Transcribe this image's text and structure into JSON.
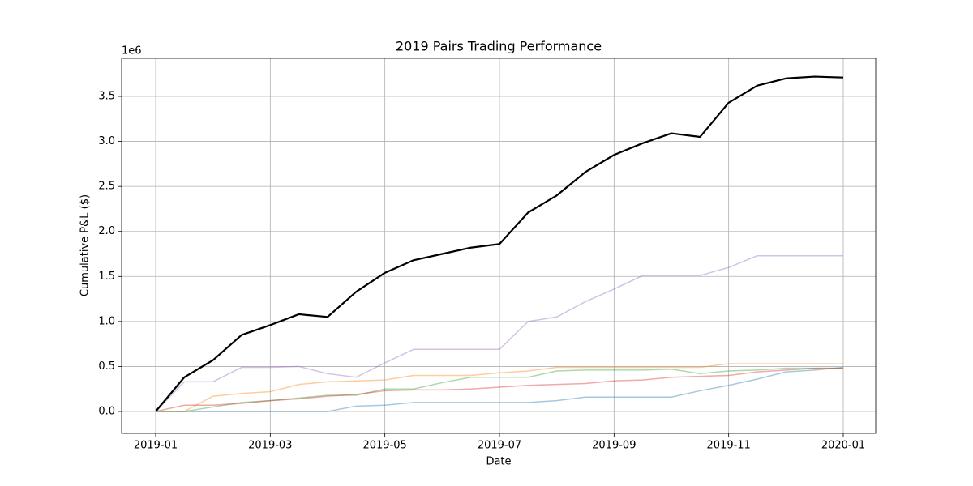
{
  "chart_data": {
    "type": "line",
    "title": "2019 Pairs Trading Performance",
    "x_label": "Date",
    "y_label": "Cumulative P&L ($)",
    "y_offset_label": "1e6",
    "x": [
      0,
      0.5,
      1,
      1.5,
      2,
      2.5,
      3,
      3.5,
      4,
      4.5,
      5,
      5.5,
      6,
      6.5,
      7,
      7.5,
      8,
      8.5,
      9,
      9.5,
      10,
      10.5,
      11,
      11.5,
      12
    ],
    "series": [
      {
        "color": "#1f77b4",
        "opacity": 0.4,
        "width": 1.5,
        "values": [
          0,
          0,
          0,
          0,
          0,
          0,
          0,
          0.06,
          0.07,
          0.1,
          0.1,
          0.1,
          0.1,
          0.1,
          0.12,
          0.16,
          0.16,
          0.16,
          0.16,
          0.23,
          0.29,
          0.36,
          0.44,
          0.46,
          0.49
        ]
      },
      {
        "color": "#ff7f0e",
        "opacity": 0.4,
        "width": 1.5,
        "values": [
          0,
          0,
          0.17,
          0.2,
          0.22,
          0.3,
          0.33,
          0.34,
          0.35,
          0.4,
          0.4,
          0.4,
          0.43,
          0.45,
          0.49,
          0.49,
          0.49,
          0.49,
          0.49,
          0.49,
          0.53,
          0.53,
          0.53,
          0.53,
          0.53
        ]
      },
      {
        "color": "#2ca02c",
        "opacity": 0.4,
        "width": 1.5,
        "values": [
          0,
          0,
          0.05,
          0.1,
          0.12,
          0.15,
          0.18,
          0.18,
          0.25,
          0.25,
          0.32,
          0.38,
          0.38,
          0.38,
          0.45,
          0.46,
          0.46,
          0.46,
          0.47,
          0.42,
          0.45,
          0.46,
          0.48,
          0.48,
          0.48
        ]
      },
      {
        "color": "#d62728",
        "opacity": 0.4,
        "width": 1.5,
        "values": [
          0,
          0.07,
          0.07,
          0.09,
          0.12,
          0.14,
          0.17,
          0.19,
          0.23,
          0.24,
          0.24,
          0.25,
          0.27,
          0.29,
          0.3,
          0.31,
          0.34,
          0.35,
          0.38,
          0.39,
          0.4,
          0.44,
          0.46,
          0.48,
          0.48
        ]
      },
      {
        "color": "#9467bd",
        "opacity": 0.4,
        "width": 1.5,
        "values": [
          0,
          0.33,
          0.33,
          0.49,
          0.49,
          0.5,
          0.42,
          0.38,
          0.54,
          0.69,
          0.69,
          0.69,
          0.69,
          1.0,
          1.05,
          1.22,
          1.36,
          1.51,
          1.51,
          1.51,
          1.6,
          1.73,
          1.73,
          1.73,
          1.73
        ]
      },
      {
        "color": "#000000",
        "opacity": 1,
        "width": 2.2,
        "values": [
          0,
          0.38,
          0.57,
          0.85,
          0.96,
          1.08,
          1.05,
          1.33,
          1.54,
          1.68,
          1.75,
          1.82,
          1.86,
          2.21,
          2.4,
          2.66,
          2.85,
          2.98,
          3.09,
          3.05,
          3.43,
          3.62,
          3.7,
          3.72,
          3.71
        ]
      }
    ],
    "xlim": [
      -0.594,
      12.566
    ],
    "xticks": [
      {
        "value": 0,
        "label": "2019-01"
      },
      {
        "value": 2,
        "label": "2019-03"
      },
      {
        "value": 4,
        "label": "2019-05"
      },
      {
        "value": 6,
        "label": "2019-07"
      },
      {
        "value": 8,
        "label": "2019-09"
      },
      {
        "value": 10,
        "label": "2019-11"
      },
      {
        "value": 12,
        "label": "2020-01"
      }
    ],
    "ylim": [
      -0.243,
      3.923
    ],
    "yticks": [
      {
        "value": 0,
        "label": "0.0"
      },
      {
        "value": 0.5,
        "label": "0.5"
      },
      {
        "value": 1,
        "label": "1.0"
      },
      {
        "value": 1.5,
        "label": "1.5"
      },
      {
        "value": 2,
        "label": "2.0"
      },
      {
        "value": 2.5,
        "label": "2.5"
      },
      {
        "value": 3,
        "label": "3.0"
      },
      {
        "value": 3.5,
        "label": "3.5"
      }
    ],
    "grid": true
  }
}
